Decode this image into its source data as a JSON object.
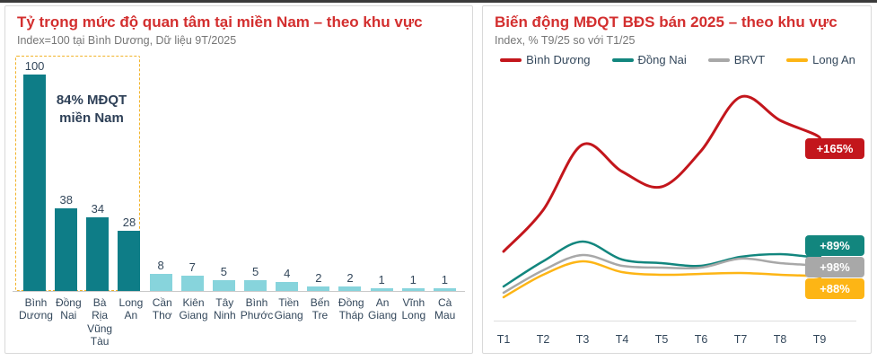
{
  "colors": {
    "title_red": "#d32f2f",
    "text_dark": "#33475b",
    "text_muted": "#767676",
    "axis_line": "#c9c9c9",
    "card_border": "#d9d9d9",
    "top_strip": "#3b3b3b"
  },
  "chart_data": [
    {
      "type": "bar",
      "title": "Tỷ trọng mức độ quan tâm tại miền Nam – theo khu vực",
      "subtitle": "Index=100 tại Bình Dương, Dữ liệu 9T/2025",
      "categories": [
        "Bình Dương",
        "Đồng Nai",
        "Bà Rịa Vũng Tàu",
        "Long An",
        "Cần Thơ",
        "Kiên Giang",
        "Tây Ninh",
        "Bình Phước",
        "Tiền Giang",
        "Bến Tre",
        "Đồng Tháp",
        "An Giang",
        "Vĩnh Long",
        "Cà Mau"
      ],
      "values": [
        100,
        38,
        34,
        28,
        8,
        7,
        5,
        5,
        4,
        2,
        2,
        1,
        1,
        1
      ],
      "ylim": [
        0,
        100
      ],
      "bar_color_primary": "#0e7d87",
      "bar_color_secondary": "#87d4dc",
      "highlight": {
        "count": 4,
        "box_color": "#f2b32a",
        "label_line1": "84% MĐQT",
        "label_line2": "miền Nam"
      }
    },
    {
      "type": "line",
      "title": "Biến động MĐQT BĐS bán 2025 – theo khu vực",
      "subtitle": "Index, % T9/25 so với T1/25",
      "x": [
        "T1",
        "T2",
        "T3",
        "T4",
        "T5",
        "T6",
        "T7",
        "T8",
        "T9"
      ],
      "grid": false,
      "legend_position": "top",
      "series": [
        {
          "name": "Bình Dương",
          "color": "#c3161c",
          "end_label": "+165%",
          "values": [
            77,
            123,
            196,
            166,
            149,
            189,
            249,
            223,
            204
          ]
        },
        {
          "name": "Đồng Nai",
          "color": "#12867e",
          "end_label": "+89%",
          "values": [
            38,
            66,
            88,
            68,
            64,
            61,
            71,
            74,
            71
          ]
        },
        {
          "name": "BRVT",
          "color": "#a8a8a8",
          "end_label": "+98%",
          "values": [
            31,
            56,
            73,
            61,
            59,
            59,
            69,
            64,
            61
          ]
        },
        {
          "name": "Long An",
          "color": "#fdb515",
          "end_label": "+88%",
          "values": [
            26,
            51,
            66,
            54,
            51,
            52,
            53,
            51,
            48
          ]
        }
      ]
    }
  ]
}
